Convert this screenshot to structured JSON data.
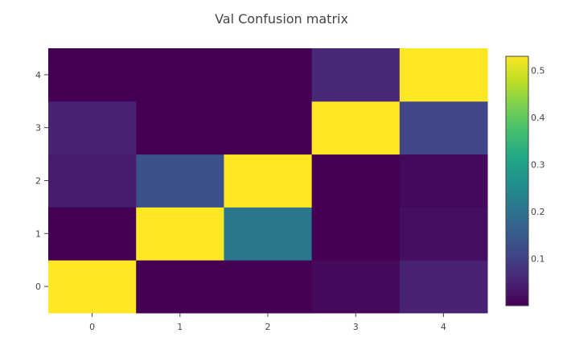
{
  "chart_data": {
    "type": "heatmap",
    "title": "Val Confusion matrix",
    "x_categories": [
      "0",
      "1",
      "2",
      "3",
      "4"
    ],
    "y_categories": [
      "0",
      "1",
      "2",
      "3",
      "4"
    ],
    "z": [
      [
        0.53,
        0.0,
        0.0,
        0.01,
        0.05
      ],
      [
        0.0,
        0.53,
        0.21,
        0.0,
        0.02
      ],
      [
        0.04,
        0.13,
        0.53,
        0.0,
        0.01
      ],
      [
        0.05,
        0.0,
        0.0,
        0.53,
        0.11
      ],
      [
        0.0,
        0.0,
        0.0,
        0.06,
        0.53
      ]
    ],
    "zmin": 0.0,
    "zmax": 0.53,
    "colorscale": "Viridis",
    "colorbar": {
      "ticks": [
        0.1,
        0.2,
        0.3,
        0.4,
        0.5
      ],
      "tick_labels": [
        "0.1",
        "0.2",
        "0.3",
        "0.4",
        "0.5"
      ]
    }
  }
}
